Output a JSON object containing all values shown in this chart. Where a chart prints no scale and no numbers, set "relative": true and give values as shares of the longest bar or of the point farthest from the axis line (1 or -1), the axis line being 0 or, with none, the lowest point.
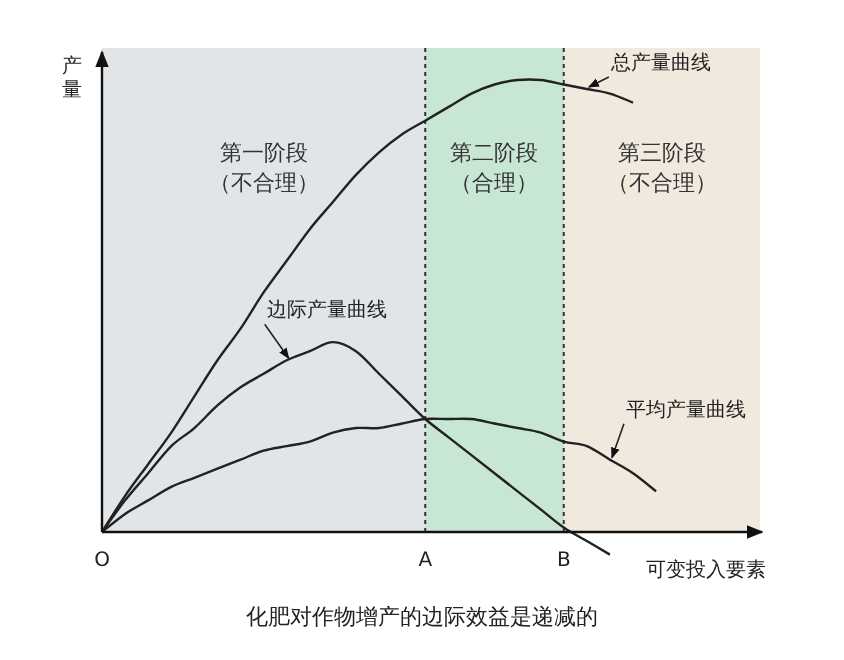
{
  "chart_data": {
    "type": "line",
    "title": "化肥对作物增产的边际效益是递减的",
    "xlabel": "可变投入要素",
    "ylabel": "产量",
    "relative": true,
    "categories": [
      "O",
      null,
      null,
      null,
      null,
      null,
      null,
      null,
      null,
      null,
      null,
      null,
      null,
      null,
      "A",
      null,
      null,
      null,
      null,
      null,
      "B",
      null,
      null,
      null,
      null,
      null,
      null,
      null,
      null
    ],
    "bands": [
      {
        "axis": "x",
        "from": "O",
        "to": "A",
        "label": "第一阶段（不合理）",
        "color": "#e2e5e8"
      },
      {
        "axis": "x",
        "from": "A",
        "to": "B",
        "label": "第二阶段（合理）",
        "color": "#c8e6d4"
      }
    ],
    "annotations": [
      "第三阶段（不合理）"
    ],
    "ref_lines": [
      {
        "axis": "x",
        "value": "A",
        "line_style": "dotted",
        "color": "#333333"
      },
      {
        "axis": "x",
        "value": "B",
        "line_style": "dotted",
        "color": "#333333"
      }
    ],
    "series": [
      {
        "name": "总产量曲线",
        "color": "#222222",
        "values": [
          0,
          0.08,
          0.15,
          0.22,
          0.3,
          0.38,
          0.45,
          0.53,
          0.6,
          0.67,
          0.73,
          0.79,
          0.84,
          0.88,
          0.91,
          0.94,
          0.97,
          0.99,
          1,
          1,
          0.99,
          0.98,
          0.97,
          0.95,
          null,
          null,
          null,
          null,
          null
        ]
      },
      {
        "name": "边际产量曲线",
        "color": "#222222",
        "values": [
          0,
          0.07,
          0.13,
          0.19,
          0.23,
          0.28,
          0.32,
          0.35,
          0.38,
          0.4,
          0.42,
          0.4,
          0.35,
          0.3,
          0.25,
          0.21,
          0.17,
          0.13,
          0.09,
          0.05,
          0.01,
          -0.02,
          -0.05,
          null,
          null,
          null,
          null,
          null,
          null
        ]
      },
      {
        "name": "平均产量曲线",
        "color": "#222222",
        "values": [
          0,
          0.04,
          0.07,
          0.1,
          0.12,
          0.14,
          0.16,
          0.18,
          0.19,
          0.2,
          0.22,
          0.23,
          0.23,
          0.24,
          0.25,
          0.25,
          0.25,
          0.24,
          0.23,
          0.22,
          0.2,
          0.19,
          0.16,
          0.13,
          0.09,
          null,
          null,
          null,
          null
        ]
      }
    ]
  }
}
